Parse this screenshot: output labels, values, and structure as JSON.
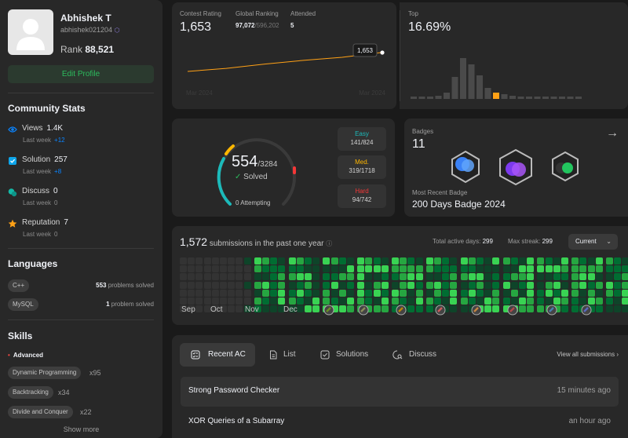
{
  "profile": {
    "name": "Abhishek T",
    "handle": "abhishek021204",
    "rank_label": "Rank",
    "rank": "88,521",
    "edit_label": "Edit Profile"
  },
  "community": {
    "title": "Community Stats",
    "items": [
      {
        "icon": "eye-icon",
        "label": "Views",
        "value": "1.4K",
        "sub": "Last week",
        "delta": "+12",
        "color": "#0a84ff"
      },
      {
        "icon": "check-square-icon",
        "label": "Solution",
        "value": "257",
        "sub": "Last week",
        "delta": "+8",
        "color": "#0ea5e9"
      },
      {
        "icon": "chat-icon",
        "label": "Discuss",
        "value": "0",
        "sub": "Last week",
        "delta": "0",
        "color": "#14b8a6"
      },
      {
        "icon": "star-icon",
        "label": "Reputation",
        "value": "7",
        "sub": "Last week",
        "delta": "0",
        "color": "#ffa116"
      }
    ]
  },
  "languages": {
    "title": "Languages",
    "items": [
      {
        "name": "C++",
        "count": "553",
        "suffix": "problems solved"
      },
      {
        "name": "MySQL",
        "count": "1",
        "suffix": "problem solved"
      }
    ]
  },
  "skills": {
    "title": "Skills",
    "level": "Advanced",
    "items": [
      {
        "name": "Dynamic Programming",
        "count": "x95"
      },
      {
        "name": "Backtracking",
        "count": "x34"
      },
      {
        "name": "Divide and Conquer",
        "count": "x22"
      }
    ],
    "show_more": "Show more"
  },
  "contest": {
    "rating_label": "Contest Rating",
    "rating": "1,653",
    "global_label": "Global Ranking",
    "global": "97,072",
    "global_total": "/596,202",
    "attended_label": "Attended",
    "attended": "5",
    "tooltip": "1,653",
    "x_start": "Mar 2024",
    "x_end": "Mar 2024",
    "top_label": "Top",
    "top_value": "16.69%"
  },
  "chart_data": [
    {
      "type": "line",
      "title": "Contest Rating",
      "x": [
        "Mar 2024",
        "",
        "",
        "",
        "",
        "Mar 2024"
      ],
      "series": [
        {
          "values": [
            1500,
            1525,
            1560,
            1590,
            1615,
            1653
          ]
        }
      ],
      "color": "#ffa116"
    },
    {
      "type": "bar",
      "title": "Top",
      "values": [
        1,
        1,
        1,
        2,
        4,
        14,
        26,
        22,
        15,
        7,
        4,
        3,
        2,
        1,
        1,
        1,
        1,
        1,
        1,
        1,
        1
      ],
      "highlight_index": 10,
      "color": "#4a4a4a",
      "highlight_color": "#ffa116"
    }
  ],
  "solved": {
    "count": "554",
    "total": "/3284",
    "label": "Solved",
    "attempting": "0 Attempting",
    "easy": {
      "label": "Easy",
      "count": "141/824",
      "color": "#1cbaba"
    },
    "medium": {
      "label": "Med.",
      "count": "319/1718",
      "color": "#ffb700"
    },
    "hard": {
      "label": "Hard",
      "count": "94/742",
      "color": "#f63737"
    }
  },
  "badges": {
    "title": "Badges",
    "count": "11",
    "recent_label": "Most Recent Badge",
    "recent": "200 Days Badge 2024"
  },
  "heatmap": {
    "count": "1,572",
    "label": "submissions in the past one year",
    "active_label": "Total active days:",
    "active": "299",
    "streak_label": "Max streak:",
    "streak": "299",
    "current": "Current",
    "months": [
      "Sep",
      "Oct",
      "Nov",
      "Dec"
    ]
  },
  "recent": {
    "tabs": [
      "Recent AC",
      "List",
      "Solutions",
      "Discuss"
    ],
    "view_all": "View all submissions",
    "items": [
      {
        "title": "Strong Password Checker",
        "time": "15 minutes ago"
      },
      {
        "title": "XOR Queries of a Subarray",
        "time": "an hour ago"
      }
    ]
  }
}
